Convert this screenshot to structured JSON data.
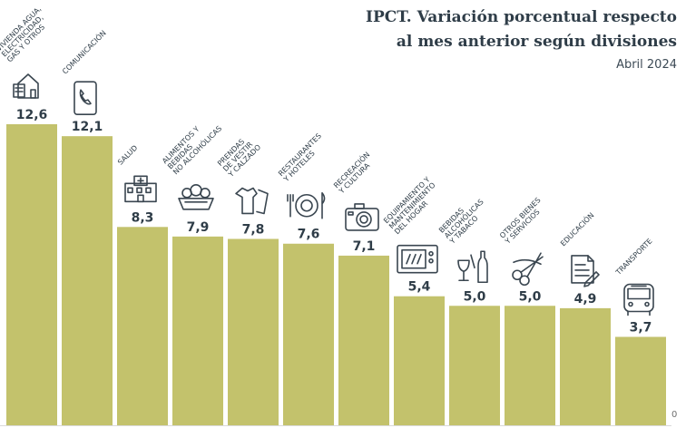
{
  "title_lines": [
    "IPCT. Variación porcentual respecto",
    "al mes anterior según divisiones"
  ],
  "subtitle": "Abril 2024",
  "colors": {
    "bar": "#c3c26c",
    "text": "#2f3d48",
    "grid": "#d9d9d9",
    "icon": "#3a4650"
  },
  "chart_data": {
    "type": "bar",
    "title": "IPCT. Variación porcentual respecto al mes anterior según divisiones",
    "subtitle": "Abril 2024",
    "categories": [
      [
        "VIVIENDA AGUA,",
        "ELECTRICIDAD,",
        "GAS Y OTROS"
      ],
      [
        "COMUNICACIÓN"
      ],
      [
        "SALUD"
      ],
      [
        "ALIMENTOS Y",
        "BEBIDAS",
        "NO ALCOHÓLICAS"
      ],
      [
        "PRENDAS",
        "DE VESTIR",
        "Y CALZADO"
      ],
      [
        "RESTAURANTES",
        "Y HOTELES"
      ],
      [
        "RECREACIÓN",
        "Y CULTURA"
      ],
      [
        "EQUIPAMIENTO Y",
        "MANTENIMIENTO",
        "DEL HOGAR"
      ],
      [
        "BEBIDAS",
        "ALCOHÓLICAS",
        "Y TABACO"
      ],
      [
        "OTROS BIENES",
        "Y SERVICIOS"
      ],
      [
        "EDUCACIÓN"
      ],
      [
        "TRANSPORTE"
      ]
    ],
    "values": [
      12.6,
      12.1,
      8.3,
      7.9,
      7.8,
      7.6,
      7.1,
      5.4,
      5.0,
      5.0,
      4.9,
      3.7
    ],
    "value_labels": [
      "12,6",
      "12,1",
      "8,3",
      "7,9",
      "7,8",
      "7,6",
      "7,1",
      "5,4",
      "5,0",
      "5,0",
      "4,9",
      "3,7"
    ],
    "icons": [
      "house-icon",
      "phone-icon",
      "hospital-icon",
      "food-basket-icon",
      "clothes-icon",
      "restaurant-icon",
      "camera-icon",
      "microwave-icon",
      "drinks-icon",
      "scissors-icon",
      "document-icon",
      "bus-icon"
    ],
    "ylim": [
      0,
      12.6
    ],
    "y_tick_labels": [
      "0"
    ],
    "grid": false,
    "legend": "none"
  }
}
